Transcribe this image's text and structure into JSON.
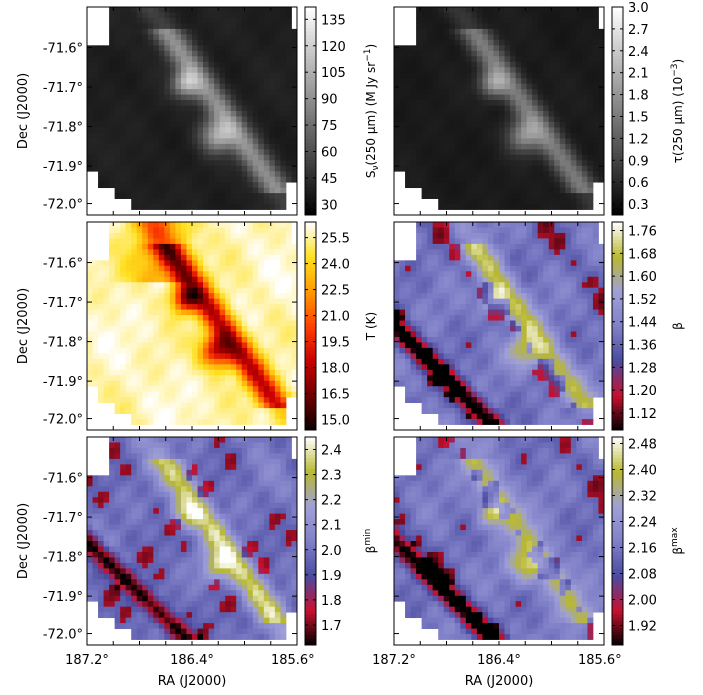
{
  "chart_data": [
    {
      "type": "heatmap",
      "position": "top-left",
      "colormap": "gray",
      "ylabel": "Dec (J2000)",
      "xlabel": "",
      "y_ticks": [
        "-71.6°",
        "-71.7°",
        "-71.8°",
        "-71.9°",
        "-72.0°"
      ],
      "x_ticks": [],
      "colorbar": {
        "label": "S_ν(250 μm) (M Jy sr⁻¹)",
        "label_parts": {
          "main": "S",
          "sub": "ν",
          "rest": "(250 μm) (M Jy sr",
          "sup": "−1",
          "end": ")"
        },
        "ticks": [
          "30",
          "45",
          "60",
          "75",
          "90",
          "105",
          "120",
          "135"
        ],
        "range": [
          24,
          142
        ]
      }
    },
    {
      "type": "heatmap",
      "position": "top-right",
      "colormap": "gray",
      "ylabel": "",
      "xlabel": "",
      "y_ticks": [],
      "x_ticks": [],
      "colorbar": {
        "label": "τ(250 μm) (10⁻³)",
        "label_parts": {
          "main": "τ",
          "sub": "",
          "rest": "(250 μm) (10",
          "sup": "−3",
          "end": ")"
        },
        "ticks": [
          "0.3",
          "0.6",
          "0.9",
          "1.2",
          "1.5",
          "1.8",
          "2.1",
          "2.4",
          "2.7",
          "3.0"
        ],
        "range": [
          0.15,
          3.0
        ]
      }
    },
    {
      "type": "heatmap",
      "position": "middle-left",
      "colormap": "hot",
      "ylabel": "Dec (J2000)",
      "xlabel": "",
      "y_ticks": [
        "-71.6°",
        "-71.7°",
        "-71.8°",
        "-71.9°",
        "-72.0°"
      ],
      "x_ticks": [],
      "colorbar": {
        "label": "T (K)",
        "label_parts": {
          "main": "T (K)",
          "sub": "",
          "rest": "",
          "sup": "",
          "end": ""
        },
        "ticks": [
          "15.0",
          "16.5",
          "18.0",
          "19.5",
          "21.0",
          "22.5",
          "24.0",
          "25.5"
        ],
        "range": [
          14.4,
          26.4
        ]
      }
    },
    {
      "type": "heatmap",
      "position": "middle-right",
      "colormap": "beta",
      "ylabel": "",
      "xlabel": "",
      "y_ticks": [],
      "x_ticks": [],
      "colorbar": {
        "label": "β",
        "label_parts": {
          "main": "β",
          "sub": "",
          "rest": "",
          "sup": "",
          "end": ""
        },
        "ticks": [
          "1.12",
          "1.20",
          "1.28",
          "1.36",
          "1.44",
          "1.52",
          "1.60",
          "1.68",
          "1.76"
        ],
        "range": [
          1.06,
          1.79
        ]
      }
    },
    {
      "type": "heatmap",
      "position": "bottom-left",
      "colormap": "beta",
      "ylabel": "Dec (J2000)",
      "xlabel": "RA (J2000)",
      "y_ticks": [
        "-71.6°",
        "-71.7°",
        "-71.8°",
        "-71.9°",
        "-72.0°"
      ],
      "x_ticks": [
        "187.2°",
        "186.4°",
        "185.6°"
      ],
      "colorbar": {
        "label": "β^min",
        "label_parts": {
          "main": "β",
          "sub": "",
          "rest": "",
          "sup": "min",
          "end": ""
        },
        "ticks": [
          "1.7",
          "1.8",
          "1.9",
          "2.0",
          "2.1",
          "2.2",
          "2.3",
          "2.4"
        ],
        "range": [
          1.62,
          2.45
        ]
      }
    },
    {
      "type": "heatmap",
      "position": "bottom-right",
      "colormap": "beta",
      "ylabel": "",
      "xlabel": "RA (J2000)",
      "y_ticks": [],
      "x_ticks": [
        "187.2°",
        "186.4°",
        "185.6°"
      ],
      "colorbar": {
        "label": "β^max",
        "label_parts": {
          "main": "β",
          "sub": "",
          "rest": "",
          "sup": "max",
          "end": ""
        },
        "ticks": [
          "1.92",
          "2.00",
          "2.08",
          "2.16",
          "2.24",
          "2.32",
          "2.40",
          "2.48"
        ],
        "range": [
          1.86,
          2.5
        ]
      }
    }
  ],
  "colors": {
    "gray": [
      "#000000",
      "#ffffff"
    ],
    "hot": [
      "#0a0000",
      "#6e0000",
      "#c80000",
      "#ff4000",
      "#ff9a00",
      "#ffe020",
      "#ffffff"
    ],
    "beta": [
      "#000000",
      "#c8102e",
      "#4a4aa0",
      "#8080c8",
      "#a0a0d8",
      "#b8b830",
      "#ffffff"
    ]
  }
}
